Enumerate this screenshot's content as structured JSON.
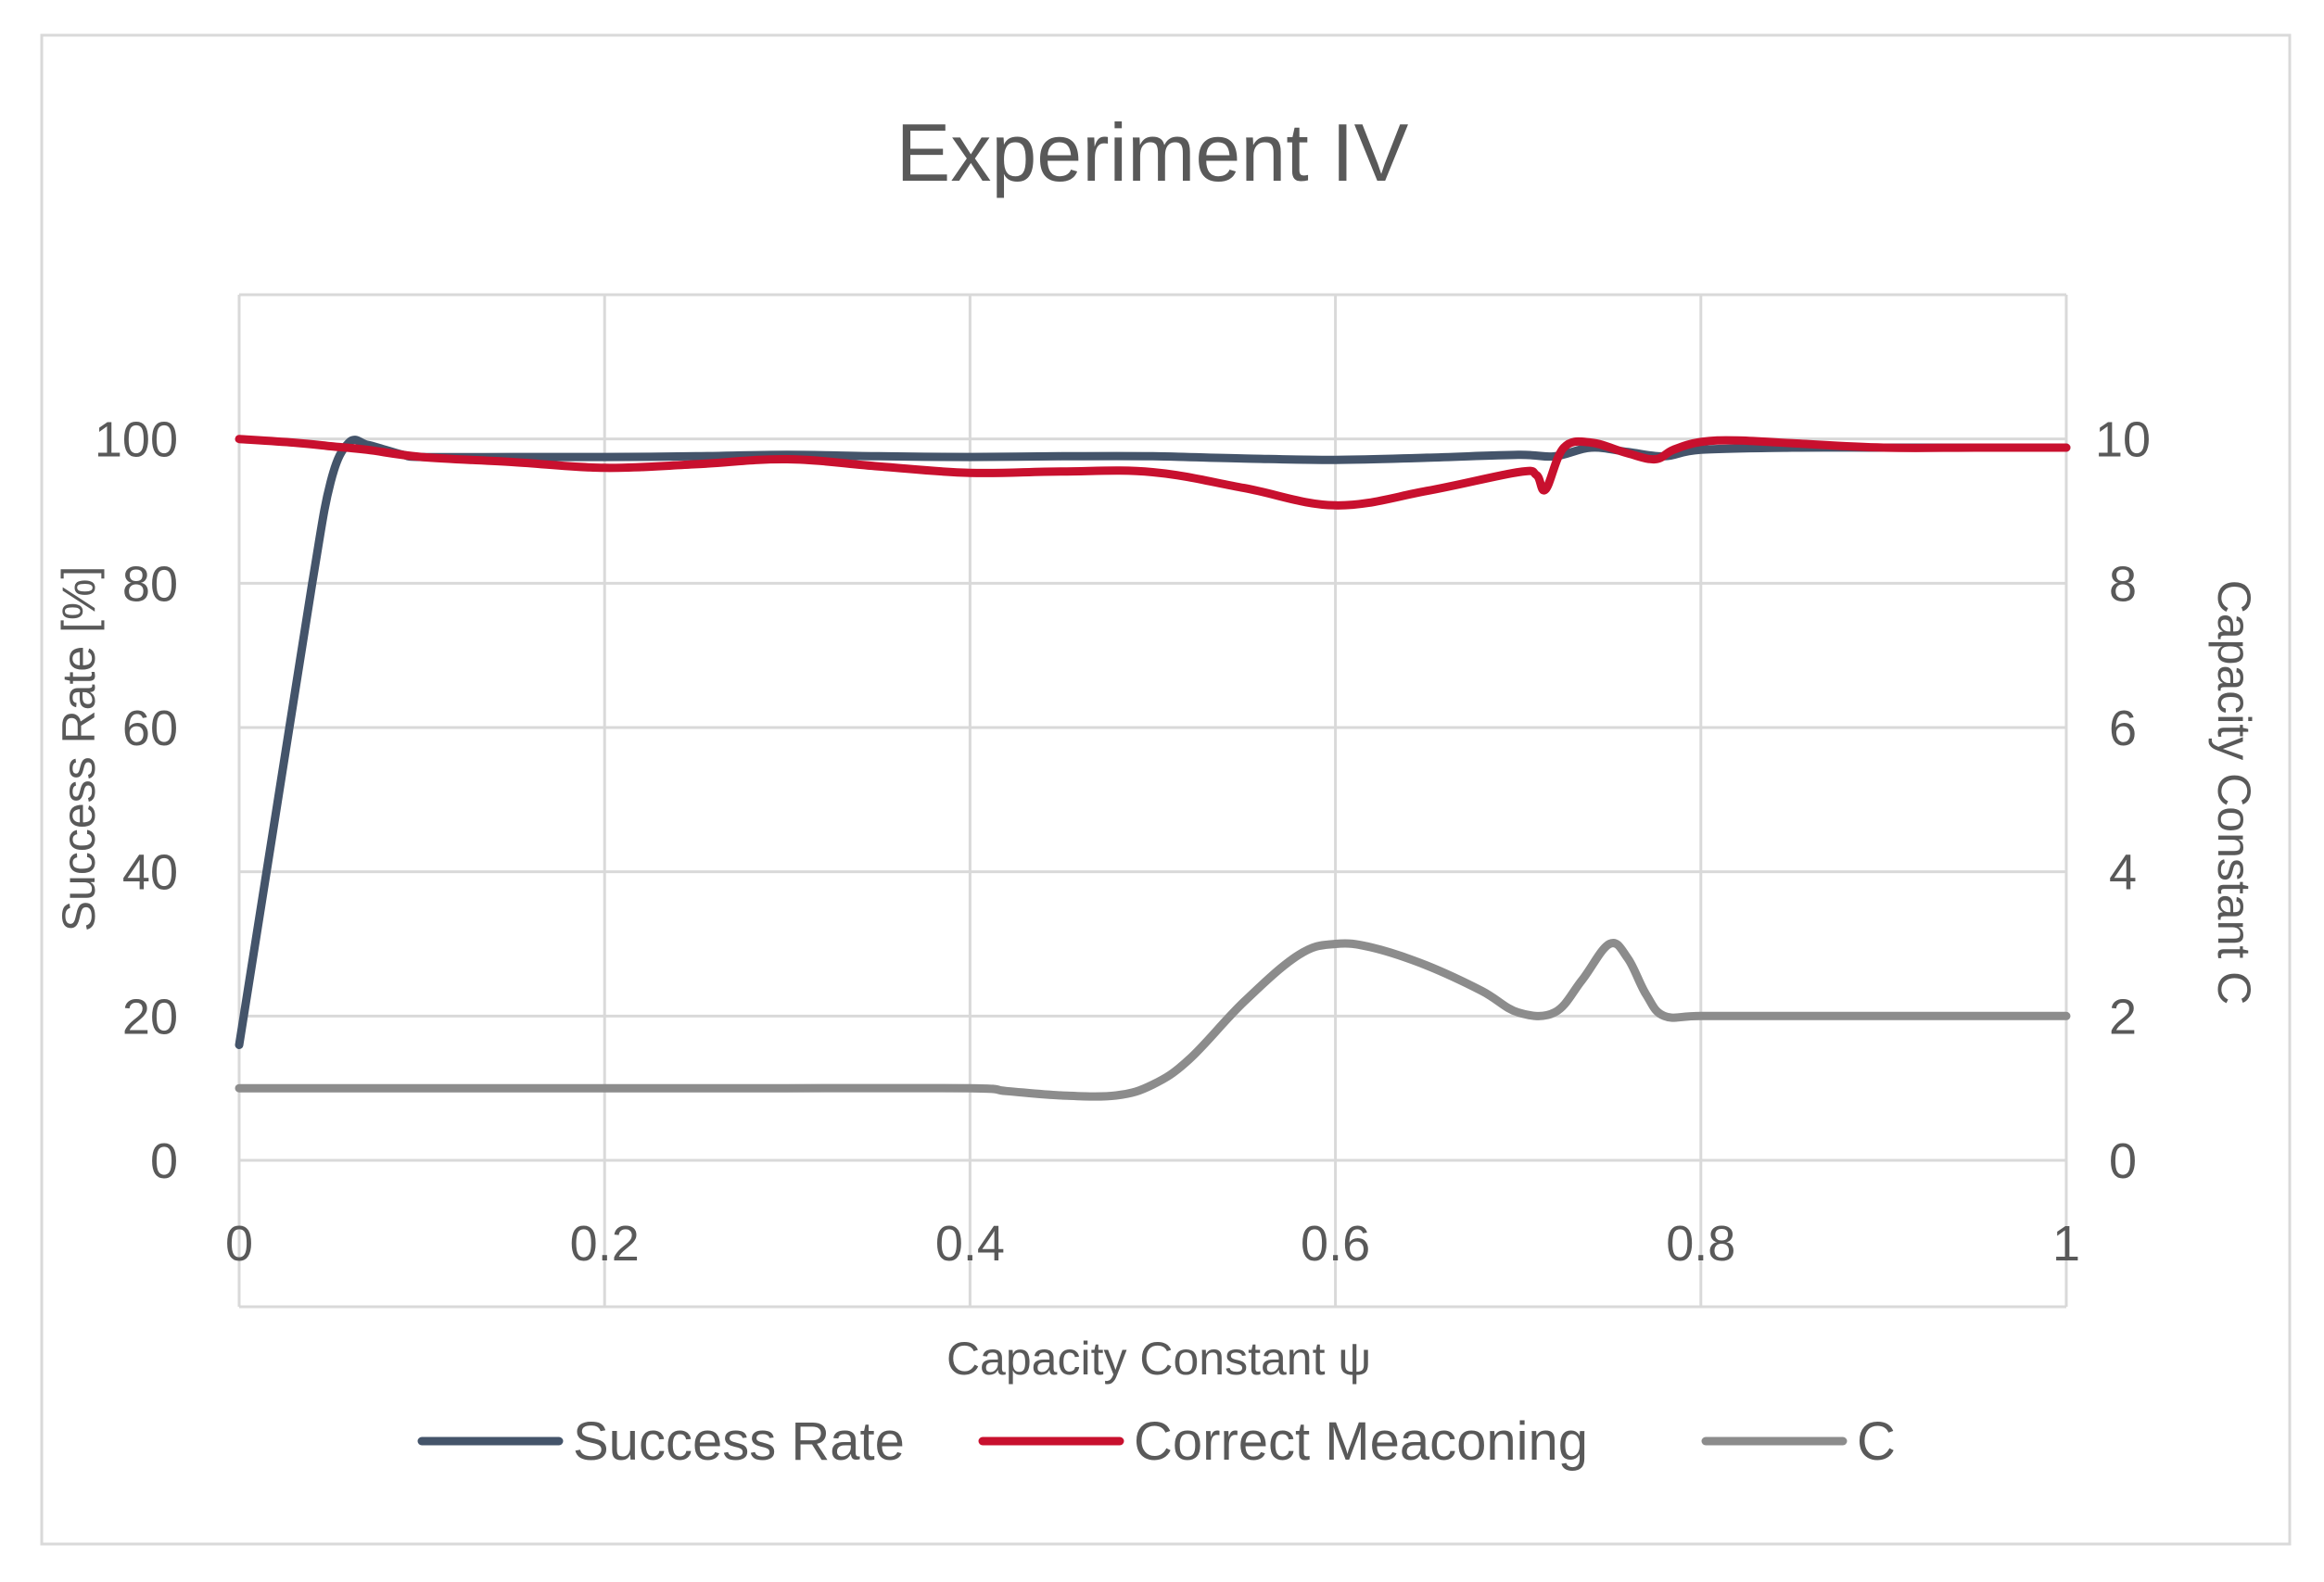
{
  "chart_data": {
    "type": "line",
    "title": "Experiment IV",
    "xlabel": "Capacity Constant ψ",
    "ylabel": "Success Rate [%]",
    "y2label": "Capacity Constant C",
    "xlim": [
      0,
      1
    ],
    "ylim": [
      0,
      120
    ],
    "y2lim": [
      0,
      12
    ],
    "x_ticks": [
      0,
      0.2,
      0.4,
      0.6,
      0.8,
      1
    ],
    "x_tick_labels": [
      "0",
      "0.2",
      "0.4",
      "0.6",
      "0.8",
      "1"
    ],
    "y_ticks": [
      0,
      20,
      40,
      60,
      80,
      100
    ],
    "y_tick_labels": [
      "0",
      "20",
      "40",
      "60",
      "80",
      "100"
    ],
    "y2_ticks": [
      0,
      2,
      4,
      6,
      8,
      10
    ],
    "y2_tick_labels": [
      "0",
      "2",
      "4",
      "6",
      "8",
      "10"
    ],
    "grid": true,
    "legend_position": "bottom",
    "series": [
      {
        "name": "Success Rate",
        "axis": "left",
        "color": "#44546a",
        "x": [
          0,
          0.02,
          0.04,
          0.05,
          0.06,
          0.07,
          0.08,
          0.09,
          0.1,
          0.15,
          0.2,
          0.25,
          0.3,
          0.35,
          0.4,
          0.45,
          0.5,
          0.55,
          0.6,
          0.65,
          0.7,
          0.72,
          0.74,
          0.76,
          0.78,
          0.8,
          0.85,
          0.9,
          0.95,
          1.0
        ],
        "values": [
          16,
          48,
          80,
          94,
          99.5,
          99.2,
          98.5,
          97.8,
          97.5,
          97.5,
          97.5,
          97.6,
          97.8,
          97.6,
          97.5,
          97.6,
          97.6,
          97.3,
          97.1,
          97.4,
          97.8,
          97.6,
          98.8,
          98.2,
          97.6,
          98.5,
          98.8,
          98.8,
          98.8,
          98.8
        ]
      },
      {
        "name": "Correct Meaconing",
        "axis": "left",
        "color": "#c8102e",
        "x": [
          0,
          0.03,
          0.05,
          0.07,
          0.1,
          0.15,
          0.2,
          0.25,
          0.3,
          0.35,
          0.4,
          0.45,
          0.5,
          0.55,
          0.6,
          0.65,
          0.7,
          0.71,
          0.715,
          0.725,
          0.74,
          0.76,
          0.775,
          0.785,
          0.8,
          0.82,
          0.85,
          0.9,
          0.95,
          1.0
        ],
        "values": [
          100,
          99.5,
          99,
          98.5,
          97.5,
          96.8,
          96,
          96.5,
          97.2,
          96.2,
          95.3,
          95.5,
          95.4,
          93.2,
          90.8,
          92.8,
          95.4,
          95,
          93,
          98.8,
          99.5,
          98,
          97.2,
          98.5,
          99.6,
          99.8,
          99.4,
          98.8,
          98.8,
          98.8
        ]
      },
      {
        "name": "C",
        "axis": "right",
        "color": "#8c8c8c",
        "x": [
          0,
          0.1,
          0.2,
          0.3,
          0.4,
          0.42,
          0.45,
          0.48,
          0.5,
          0.52,
          0.55,
          0.58,
          0.6,
          0.62,
          0.65,
          0.68,
          0.7,
          0.72,
          0.735,
          0.75,
          0.76,
          0.77,
          0.78,
          0.8,
          0.85,
          0.9,
          0.95,
          1.0
        ],
        "values": [
          1,
          1,
          1,
          1,
          1,
          0.96,
          0.9,
          0.9,
          1.05,
          1.4,
          2.2,
          2.85,
          3.0,
          2.95,
          2.7,
          2.35,
          2.05,
          2.05,
          2.5,
          3.0,
          2.8,
          2.3,
          2.0,
          2.0,
          2.0,
          2.0,
          2.0,
          2.0
        ]
      }
    ]
  }
}
